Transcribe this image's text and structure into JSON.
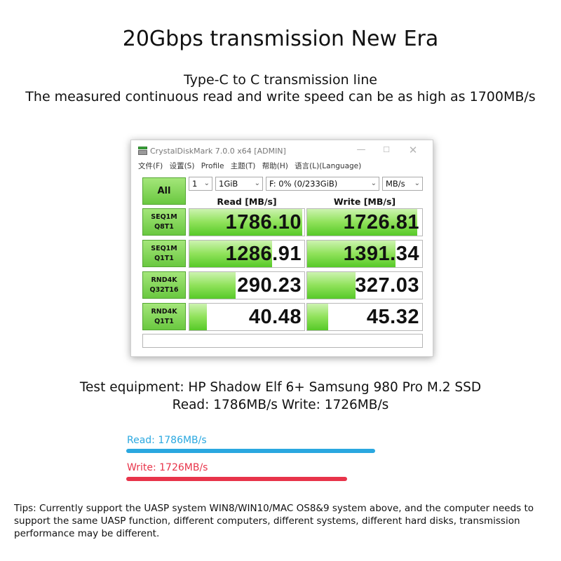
{
  "headline": "20Gbps transmission New Era",
  "subtitle_line1": "Type-C to C transmission line",
  "subtitle_line2": "The measured continuous read and write speed can be as high as 1700MB/s",
  "app": {
    "title": "CrystalDiskMark 7.0.0 x64 [ADMIN]",
    "menu": [
      "文件(F)",
      "设置(S)",
      "Profile",
      "主题(T)",
      "帮助(H)",
      "语言(L)(Language)"
    ],
    "all_button": "All",
    "count_select": "1",
    "size_select": "1GiB",
    "drive_select": "F: 0% (0/233GiB)",
    "unit_select": "MB/s",
    "read_header": "Read [MB/s]",
    "write_header": "Write [MB/s]",
    "rows": [
      {
        "label1": "SEQ1M",
        "label2": "Q8T1",
        "read": "1786.10",
        "write": "1726.81",
        "read_fill": 0.98,
        "write_fill": 0.96
      },
      {
        "label1": "SEQ1M",
        "label2": "Q1T1",
        "read": "1286.91",
        "write": "1391.34",
        "read_fill": 0.72,
        "write_fill": 0.77
      },
      {
        "label1": "RND4K",
        "label2": "Q32T16",
        "read": "290.23",
        "write": "327.03",
        "read_fill": 0.4,
        "write_fill": 0.42
      },
      {
        "label1": "RND4K",
        "label2": "Q1T1",
        "read": "40.48",
        "write": "45.32",
        "read_fill": 0.15,
        "write_fill": 0.18
      }
    ],
    "colors": {
      "green": "#6ac840",
      "green_light": "#cdf3b1"
    }
  },
  "equipment_line1": "Test equipment: HP Shadow Elf 6+ Samsung 980 Pro M.2 SSD",
  "equipment_line2": "Read: 1786MB/s Write: 1726MB/s",
  "bars": {
    "read_label": "Read: 1786MB/s",
    "write_label": "Write: 1726MB/s",
    "read_color": "#2aa8e0",
    "write_color": "#e8344a",
    "read_value": 1786,
    "write_value": 1726
  },
  "tips": "Tips: Currently support the UASP system WIN8/WIN10/MAC OS8&9 system above, and the computer needs to support the same UASP function, different computers, different systems, different hard disks, transmission performance may be different."
}
